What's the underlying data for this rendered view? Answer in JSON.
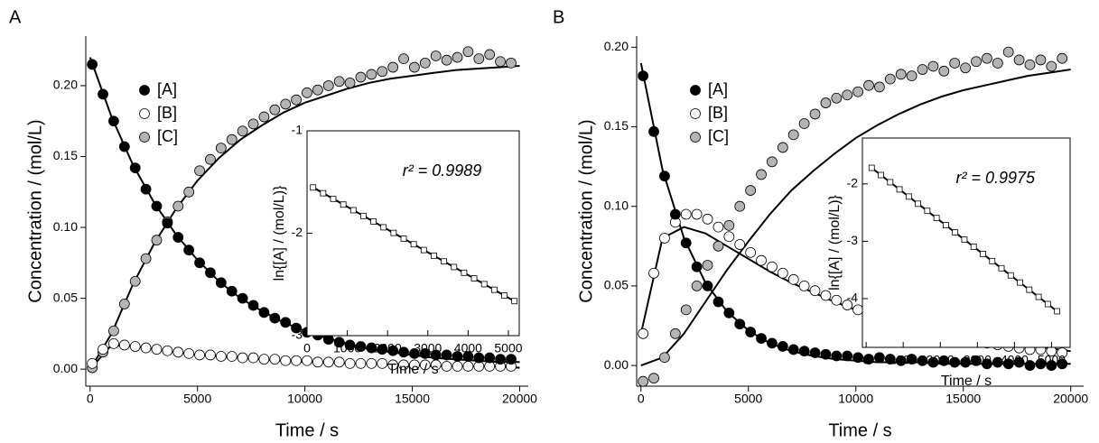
{
  "chart_data": [
    {
      "type": "scatter",
      "panel": "A",
      "xlabel": "Time / s",
      "ylabel": "Concentration / (mol/L)",
      "marker": "circle",
      "legend": "upper left",
      "xlim": [
        -200,
        20400
      ],
      "xticks": [
        0,
        5000,
        10000,
        15000,
        20000
      ],
      "ylim": [
        -0.012,
        0.235
      ],
      "yticks": [
        {
          "value": 0,
          "label": "0.00"
        },
        0.05,
        {
          "value": 0.1,
          "label": "0.10"
        },
        0.15,
        {
          "value": 0.2,
          "label": "0.20"
        }
      ],
      "x": [
        100,
        600,
        1100,
        1600,
        2100,
        2600,
        3100,
        3600,
        4100,
        4600,
        5100,
        5600,
        6100,
        6600,
        7100,
        7600,
        8100,
        8600,
        9100,
        9600,
        10100,
        10600,
        11100,
        11600,
        12100,
        12600,
        13100,
        13600,
        14100,
        14600,
        15100,
        15600,
        16100,
        16600,
        17100,
        17600,
        18100,
        18600,
        19100,
        19600
      ],
      "series": [
        {
          "name": "[A]",
          "color": "#000000",
          "values": [
            0.215,
            0.194,
            0.175,
            0.157,
            0.142,
            0.127,
            0.115,
            0.103,
            0.093,
            0.084,
            0.075,
            0.068,
            0.061,
            0.055,
            0.05,
            0.045,
            0.04,
            0.036,
            0.033,
            0.029,
            0.026,
            0.024,
            0.021,
            0.019,
            0.017,
            0.016,
            0.015,
            0.014,
            0.013,
            0.012,
            0.011,
            0.011,
            0.01,
            0.01,
            0.009,
            0.009,
            0.008,
            0.008,
            0.007,
            0.007
          ]
        },
        {
          "name": "[B]",
          "color": "#ffffff",
          "values": [
            0.004,
            0.014,
            0.018,
            0.017,
            0.016,
            0.015,
            0.014,
            0.013,
            0.012,
            0.011,
            0.01,
            0.01,
            0.009,
            0.009,
            0.008,
            0.008,
            0.007,
            0.007,
            0.006,
            0.006,
            0.006,
            0.005,
            0.005,
            0.005,
            0.004,
            0.004,
            0.004,
            0.004,
            0.003,
            0.003,
            0.003,
            0.003,
            0.003,
            0.002,
            0.002,
            0.002,
            0.002,
            0.002,
            0.002,
            0.002
          ]
        },
        {
          "name": "[C]",
          "color": "#b4b4b4",
          "values": [
            0.001,
            0.012,
            0.027,
            0.046,
            0.062,
            0.078,
            0.091,
            0.104,
            0.115,
            0.125,
            0.14,
            0.148,
            0.156,
            0.162,
            0.168,
            0.173,
            0.178,
            0.183,
            0.187,
            0.19,
            0.195,
            0.197,
            0.2,
            0.203,
            0.202,
            0.206,
            0.208,
            0.21,
            0.213,
            0.219,
            0.213,
            0.216,
            0.221,
            0.218,
            0.22,
            0.224,
            0.219,
            0.222,
            0.217,
            0.216
          ]
        }
      ],
      "lines": [
        {
          "color": "#000000",
          "x": [
            0,
            1000,
            2000,
            3000,
            4000,
            5000,
            6000,
            7000,
            8000,
            9000,
            10000,
            11000,
            12000,
            13000,
            14000,
            15000,
            16000,
            17000,
            18000,
            19000,
            20000
          ],
          "values": [
            0.22,
            0.178,
            0.144,
            0.117,
            0.095,
            0.077,
            0.062,
            0.05,
            0.041,
            0.033,
            0.027,
            0.022,
            0.018,
            0.014,
            0.012,
            0.01,
            0.008,
            0.007,
            0.006,
            0.005,
            0.005
          ]
        },
        {
          "color": "#000000",
          "x": [
            0,
            1000,
            2000,
            3000,
            4000,
            5000,
            6000,
            7000,
            8000,
            9000,
            10000,
            11000,
            12000,
            13000,
            14000,
            15000,
            16000,
            17000,
            18000,
            19000,
            20000
          ],
          "values": [
            0,
            0.017,
            0.016,
            0.014,
            0.012,
            0.01,
            0.009,
            0.008,
            0.007,
            0.006,
            0.005,
            0.005,
            0.004,
            0.004,
            0.003,
            0.003,
            0.002,
            0.002,
            0.002,
            0.002,
            0.001
          ]
        },
        {
          "color": "#000000",
          "x": [
            0,
            1000,
            2000,
            3000,
            4000,
            5000,
            6000,
            7000,
            8000,
            9000,
            10000,
            11000,
            12000,
            13000,
            14000,
            15000,
            16000,
            17000,
            18000,
            19000,
            20000
          ],
          "values": [
            0,
            0.025,
            0.06,
            0.089,
            0.113,
            0.133,
            0.149,
            0.162,
            0.172,
            0.181,
            0.188,
            0.193,
            0.198,
            0.202,
            0.205,
            0.207,
            0.209,
            0.211,
            0.212,
            0.213,
            0.214
          ]
        }
      ]
    },
    {
      "type": "scatter",
      "frame": true,
      "xlabel": "Time / s",
      "ylabel": "ln{[A] / (mol/L)}",
      "annotation": "r² = 0.9989",
      "marker": "square",
      "xlim": [
        0,
        5270
      ],
      "xticks": [
        0,
        1000,
        2000,
        3000,
        4000,
        5000
      ],
      "ylim": [
        -3,
        -1
      ],
      "yticks": [
        -3,
        -2,
        -1
      ],
      "x": [
        150,
        400,
        650,
        900,
        1150,
        1400,
        1650,
        1900,
        2150,
        2400,
        2650,
        2900,
        3150,
        3400,
        3650,
        3900,
        4150,
        4400,
        4650,
        4900,
        5150
      ],
      "series": [
        {
          "color": "#ffffff",
          "values": [
            -1.553,
            -1.609,
            -1.664,
            -1.72,
            -1.775,
            -1.831,
            -1.886,
            -1.942,
            -1.997,
            -2.053,
            -2.108,
            -2.164,
            -2.219,
            -2.275,
            -2.33,
            -2.386,
            -2.441,
            -2.497,
            -2.552,
            -2.608,
            -2.663
          ]
        }
      ],
      "lines": [
        {
          "color": "#000000",
          "x": [
            100,
            5150
          ],
          "values": [
            -1.542,
            -2.663
          ]
        }
      ]
    },
    {
      "type": "scatter",
      "panel": "B",
      "xlabel": "Time / s",
      "ylabel": "Concentration / (mol/L)",
      "marker": "circle",
      "legend": "upper left",
      "xlim": [
        -200,
        20600
      ],
      "xticks": [
        0,
        5000,
        10000,
        15000,
        20000
      ],
      "ylim": [
        -0.013,
        0.207
      ],
      "yticks": [
        {
          "value": 0,
          "label": "0.00"
        },
        0.05,
        {
          "value": 0.1,
          "label": "0.10"
        },
        0.15,
        {
          "value": 0.2,
          "label": "0.20"
        }
      ],
      "x": [
        100,
        600,
        1100,
        1600,
        2100,
        2600,
        3100,
        3600,
        4100,
        4600,
        5100,
        5600,
        6100,
        6600,
        7100,
        7600,
        8100,
        8600,
        9100,
        9600,
        10100,
        10600,
        11100,
        11600,
        12100,
        12600,
        13100,
        13600,
        14100,
        14600,
        15100,
        15600,
        16100,
        16600,
        17100,
        17600,
        18100,
        18600,
        19100,
        19600
      ],
      "series": [
        {
          "name": "[A]",
          "color": "#000000",
          "values": [
            0.182,
            0.147,
            0.119,
            0.095,
            0.077,
            0.062,
            0.05,
            0.04,
            0.033,
            0.026,
            0.021,
            0.017,
            0.014,
            0.012,
            0.01,
            0.009,
            0.008,
            0.007,
            0.006,
            0.006,
            0.005,
            0.004,
            0.005,
            0.004,
            0.003,
            0.004,
            0.003,
            0.002,
            0.003,
            0.002,
            0.002,
            0.003,
            0.001,
            0.002,
            0.001,
            0.002,
            0.0,
            0.001,
            0.0,
            0.001
          ]
        },
        {
          "name": "[B]",
          "color": "#ffffff",
          "values": [
            0.02,
            0.058,
            0.08,
            0.09,
            0.095,
            0.095,
            0.092,
            0.087,
            0.081,
            0.076,
            0.071,
            0.066,
            0.062,
            0.058,
            0.054,
            0.05,
            0.047,
            0.044,
            0.041,
            0.038,
            0.035,
            0.033,
            0.031,
            0.028,
            0.026,
            0.024,
            0.023,
            0.021,
            0.019,
            0.018,
            0.016,
            0.015,
            0.014,
            0.013,
            0.012,
            0.011,
            0.01,
            0.01,
            0.009,
            0.008
          ]
        },
        {
          "name": "[C]",
          "color": "#b4b4b4",
          "values": [
            -0.01,
            -0.008,
            0.005,
            0.02,
            0.035,
            0.05,
            0.063,
            0.075,
            0.088,
            0.1,
            0.11,
            0.12,
            0.128,
            0.137,
            0.145,
            0.152,
            0.158,
            0.165,
            0.168,
            0.17,
            0.172,
            0.176,
            0.175,
            0.18,
            0.183,
            0.182,
            0.186,
            0.188,
            0.185,
            0.19,
            0.187,
            0.191,
            0.193,
            0.19,
            0.197,
            0.192,
            0.189,
            0.192,
            0.188,
            0.193
          ]
        }
      ],
      "lines": [
        {
          "color": "#000000",
          "x": [
            0,
            1000,
            2000,
            3000,
            4000,
            5000,
            6000,
            7000,
            8000,
            9000,
            10000,
            11000,
            12000,
            13000,
            14000,
            15000,
            16000,
            17000,
            18000,
            19000,
            20000
          ],
          "values": [
            0.19,
            0.123,
            0.08,
            0.052,
            0.034,
            0.022,
            0.014,
            0.009,
            0.006,
            0.004,
            0.003,
            0.002,
            0.002,
            0.002,
            0.001,
            0.001,
            0.001,
            0.001,
            0.001,
            0.001,
            0.001
          ]
        },
        {
          "color": "#000000",
          "x": [
            0,
            1000,
            2000,
            3000,
            4000,
            5000,
            6000,
            7000,
            8000,
            9000,
            10000,
            11000,
            12000,
            13000,
            14000,
            15000,
            16000,
            17000,
            18000,
            19000,
            20000
          ],
          "values": [
            0.02,
            0.08,
            0.087,
            0.083,
            0.075,
            0.067,
            0.059,
            0.052,
            0.046,
            0.04,
            0.035,
            0.031,
            0.027,
            0.024,
            0.021,
            0.018,
            0.016,
            0.014,
            0.012,
            0.011,
            0.009
          ]
        },
        {
          "color": "#000000",
          "x": [
            0,
            1000,
            2000,
            3000,
            4000,
            5000,
            6000,
            7000,
            8000,
            9000,
            10000,
            11000,
            12000,
            13000,
            14000,
            15000,
            16000,
            17000,
            18000,
            19000,
            20000
          ],
          "values": [
            0,
            0.005,
            0.02,
            0.04,
            0.06,
            0.078,
            0.095,
            0.11,
            0.122,
            0.133,
            0.143,
            0.151,
            0.158,
            0.164,
            0.169,
            0.173,
            0.176,
            0.179,
            0.182,
            0.184,
            0.186
          ]
        }
      ]
    },
    {
      "type": "scatter",
      "frame": true,
      "xlabel": "Time / s",
      "ylabel": "ln{[A] / (mol/L)}",
      "annotation": "r² = 0.9975",
      "marker": "square",
      "xlim": [
        -100,
        5500
      ],
      "xticks": [
        0,
        1000,
        2000,
        3000,
        4000,
        5000
      ],
      "ylim": [
        -4.85,
        -1.2
      ],
      "yticks": [
        -4,
        -3,
        -2
      ],
      "x": [
        150,
        400,
        650,
        900,
        1150,
        1400,
        1650,
        1900,
        2150,
        2400,
        2650,
        2900,
        3150,
        3400,
        3650,
        3900,
        4150,
        4400,
        4650,
        4900,
        5150
      ],
      "series": [
        {
          "color": "#ffffff",
          "values": [
            -1.72,
            -1.845,
            -1.97,
            -2.095,
            -2.22,
            -2.345,
            -2.47,
            -2.595,
            -2.72,
            -2.845,
            -2.97,
            -3.095,
            -3.22,
            -3.345,
            -3.47,
            -3.595,
            -3.72,
            -3.845,
            -3.97,
            -4.095,
            -4.22
          ]
        }
      ],
      "lines": [
        {
          "color": "#000000",
          "x": [
            100,
            5150
          ],
          "values": [
            -1.695,
            -4.22
          ]
        }
      ]
    }
  ]
}
